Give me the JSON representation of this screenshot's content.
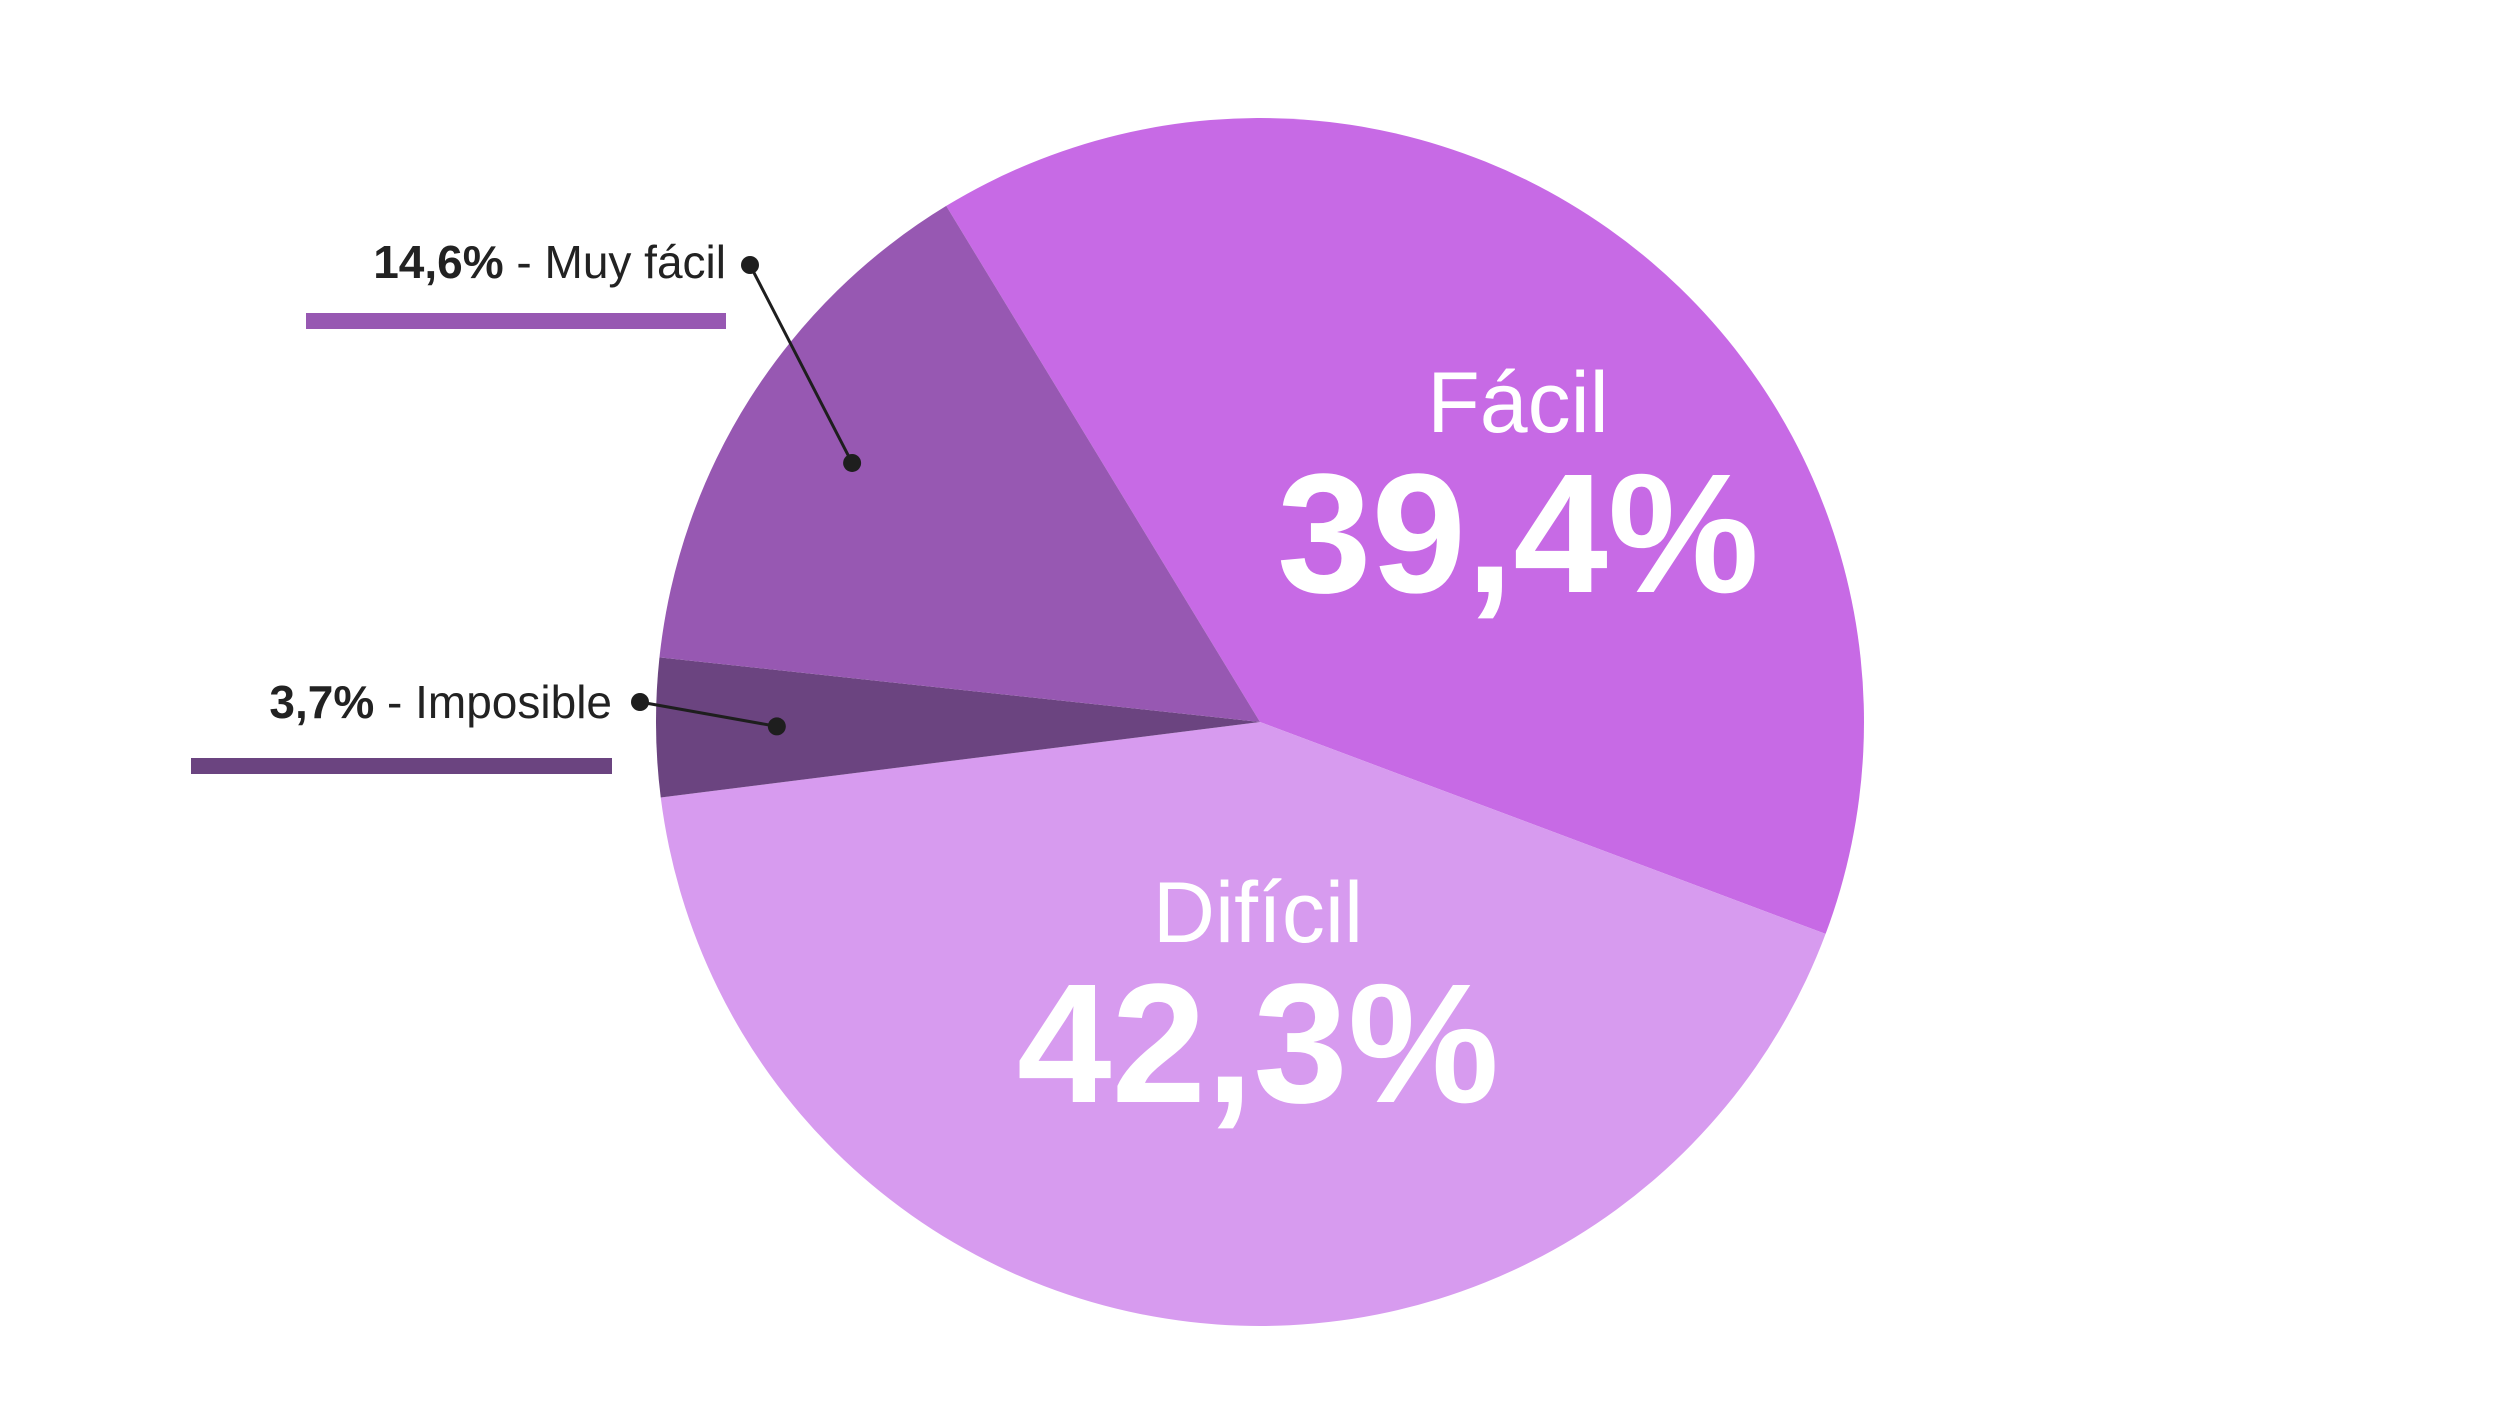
{
  "chart_data": {
    "type": "pie",
    "slices": [
      {
        "name": "Fácil",
        "value": 39.4,
        "label": "39,4%",
        "color": "#c76ae5",
        "label_style": "inside"
      },
      {
        "name": "Difícil",
        "value": 42.3,
        "label": "42,3%",
        "color": "#d79bef",
        "label_style": "inside"
      },
      {
        "name": "Imposible",
        "value": 3.7,
        "label": "3,7%",
        "color": "#6b4480",
        "label_style": "callout"
      },
      {
        "name": "Muy fácil",
        "value": 14.6,
        "label": "14,6%",
        "color": "#9758b2",
        "label_style": "callout"
      }
    ],
    "start_angle_deg": -31.3,
    "direction": "clockwise",
    "legend": "none"
  }
}
